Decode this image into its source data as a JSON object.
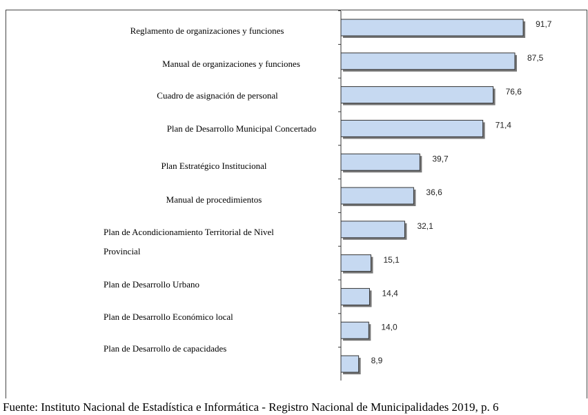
{
  "chart_data": {
    "type": "bar",
    "orientation": "horizontal",
    "categories": [
      "Reglamento de organizaciones y funciones",
      "Manual de organizaciones y funciones",
      "Cuadro de asignación de personal",
      "Plan de Desarrollo Municipal Concertado",
      "Plan Estratégico Institucional",
      "Manual de procedimientos",
      "Plan de Acondicionamiento Territorial de Nivel Provincial",
      "Plan de Desarrollo Urbano",
      "Plan de Desarrollo Económico local",
      "Plan de Desarrollo de capacidades",
      null
    ],
    "values": [
      91.7,
      87.5,
      76.6,
      71.4,
      39.7,
      36.6,
      32.1,
      15.1,
      14.4,
      14.0,
      8.9
    ],
    "value_labels": [
      "91,7",
      "87,5",
      "76,6",
      "71,4",
      "39,7",
      "36,6",
      "32,1",
      "15,1",
      "14,4",
      "14,0",
      "8,9"
    ],
    "color": "#c6d9f1",
    "xlim": [
      0,
      100
    ],
    "source": "Fuente: Instituto Nacional de Estadística e Informática - Registro Nacional de Municipalidades 2019, p. 6"
  }
}
